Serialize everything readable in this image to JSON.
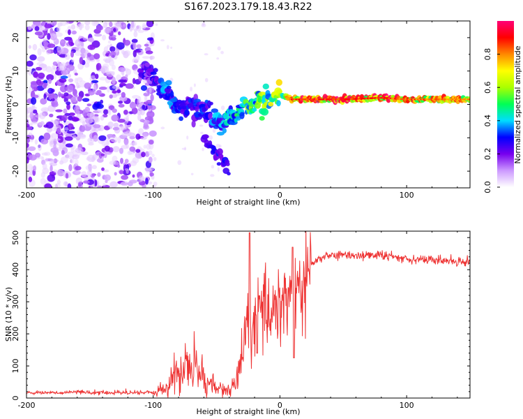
{
  "figure_title": "S167.2023.179.18.43.R22",
  "chart_data": [
    {
      "type": "heatmap",
      "name": "spectrogram",
      "xlabel": "Height of straight line (km)",
      "ylabel": "Frequency (Hz)",
      "xlim": [
        -200,
        150
      ],
      "ylim": [
        -25,
        25
      ],
      "xticks": [
        -200,
        -100,
        0,
        100
      ],
      "yticks": [
        -20,
        -10,
        0,
        10,
        20
      ],
      "colorbar": {
        "label": "Normalized spectral amplitude",
        "range": [
          0,
          1
        ],
        "ticks": [
          0.0,
          0.2,
          0.4,
          0.6,
          0.8
        ],
        "tick_labels": [
          "0.0",
          "0.2",
          "0.4",
          "0.6",
          "0.8"
        ],
        "colors": [
          "#ffffff",
          "#cc99ff",
          "#7700ee",
          "#0000ff",
          "#00ddff",
          "#00ff55",
          "#aaff00",
          "#ffff00",
          "#ff8800",
          "#ff0000",
          "#ff0077"
        ]
      },
      "ridge": {
        "x": [
          -100,
          -90,
          -80,
          -70,
          -60,
          -50,
          -45,
          -40,
          -35,
          -30,
          -20,
          -10,
          0,
          10,
          50,
          80,
          100,
          150
        ],
        "y": [
          9,
          3,
          -1,
          0,
          -2,
          -5,
          -7,
          -3,
          -4,
          -1,
          0,
          1,
          3,
          1.5,
          1.5,
          2,
          1.5,
          1.5
        ],
        "amplitude": [
          0.25,
          0.35,
          0.3,
          0.3,
          0.3,
          0.35,
          0.4,
          0.4,
          0.45,
          0.5,
          0.55,
          0.6,
          0.65,
          0.9,
          0.9,
          0.9,
          0.85,
          0.8
        ]
      },
      "secondary_branch": {
        "x": [
          -60,
          -55,
          -50,
          -45,
          -40
        ],
        "y": [
          -10,
          -12,
          -15,
          -18,
          -20
        ],
        "amplitude": 0.25
      }
    },
    {
      "type": "line",
      "name": "snr",
      "xlabel": "Height of straight line (km)",
      "ylabel": "SNR (10 * v/v)",
      "xlim": [
        -200,
        150
      ],
      "ylim": [
        0,
        520
      ],
      "xticks": [
        -200,
        -100,
        0,
        100
      ],
      "yticks": [
        0,
        100,
        200,
        300,
        400,
        500
      ],
      "color": "#ee3333",
      "series": [
        {
          "name": "SNR",
          "x": [
            -200,
            -180,
            -160,
            -140,
            -120,
            -100,
            -90,
            -85,
            -80,
            -75,
            -70,
            -65,
            -60,
            -55,
            -50,
            -45,
            -40,
            -35,
            -30,
            -28,
            -26,
            -24,
            -22,
            -20,
            -15,
            -10,
            -5,
            0,
            5,
            10,
            15,
            20,
            25,
            30,
            40,
            60,
            80,
            100,
            120,
            150
          ],
          "y": [
            12,
            14,
            15,
            14,
            13,
            14,
            30,
            55,
            80,
            95,
            100,
            90,
            65,
            45,
            30,
            25,
            25,
            40,
            120,
            180,
            210,
            230,
            200,
            240,
            260,
            280,
            290,
            300,
            310,
            320,
            330,
            370,
            410,
            435,
            445,
            445,
            445,
            435,
            430,
            425
          ]
        }
      ]
    }
  ],
  "tick_text": {
    "x": [
      "-200",
      "-100",
      "0",
      "100"
    ],
    "y_top": [
      "-20",
      "-10",
      "0",
      "10",
      "20"
    ],
    "y_bottom": [
      "0",
      "100",
      "200",
      "300",
      "400",
      "500"
    ]
  }
}
